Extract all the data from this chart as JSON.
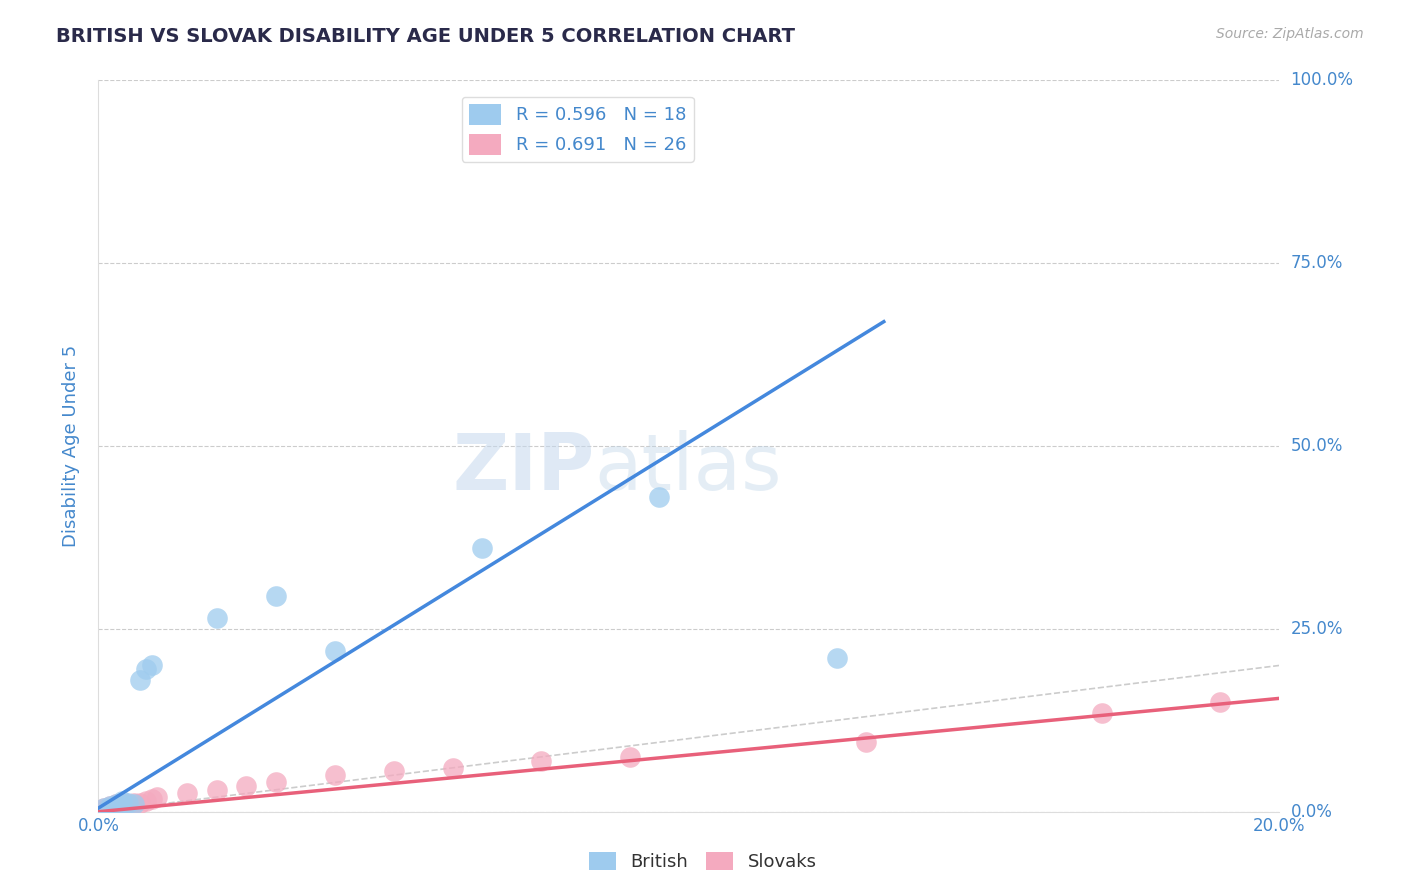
{
  "title": "BRITISH VS SLOVAK DISABILITY AGE UNDER 5 CORRELATION CHART",
  "source": "Source: ZipAtlas.com",
  "ylabel": "Disability Age Under 5",
  "xlim": [
    0.0,
    0.2
  ],
  "ylim": [
    0.0,
    1.0
  ],
  "yticks": [
    0.0,
    0.25,
    0.5,
    0.75,
    1.0
  ],
  "xticks": [
    0.0,
    0.2
  ],
  "british_R": 0.596,
  "british_N": 18,
  "slovak_R": 0.691,
  "slovak_N": 26,
  "british_color": "#9ECBEE",
  "slovak_color": "#F4AABF",
  "british_line_color": "#4488DD",
  "slovak_line_color": "#E8607A",
  "ref_line_color": "#CCCCCC",
  "title_color": "#2A2A4A",
  "axis_label_color": "#4488CC",
  "watermark_zip": "ZIP",
  "watermark_atlas": "atlas",
  "background_color": "#FFFFFF",
  "british_scatter_x": [
    0.001,
    0.002,
    0.002,
    0.003,
    0.003,
    0.004,
    0.004,
    0.005,
    0.006,
    0.007,
    0.008,
    0.009,
    0.02,
    0.03,
    0.04,
    0.065,
    0.095,
    0.125
  ],
  "british_scatter_y": [
    0.005,
    0.005,
    0.008,
    0.008,
    0.01,
    0.01,
    0.015,
    0.012,
    0.01,
    0.18,
    0.195,
    0.2,
    0.265,
    0.295,
    0.22,
    0.36,
    0.43,
    0.21
  ],
  "slovak_scatter_x": [
    0.001,
    0.001,
    0.002,
    0.002,
    0.003,
    0.003,
    0.004,
    0.004,
    0.005,
    0.006,
    0.007,
    0.008,
    0.009,
    0.01,
    0.015,
    0.02,
    0.025,
    0.03,
    0.04,
    0.05,
    0.06,
    0.075,
    0.09,
    0.13,
    0.17,
    0.19
  ],
  "slovak_scatter_y": [
    0.003,
    0.005,
    0.005,
    0.008,
    0.008,
    0.01,
    0.008,
    0.012,
    0.01,
    0.012,
    0.012,
    0.015,
    0.018,
    0.02,
    0.025,
    0.03,
    0.035,
    0.04,
    0.05,
    0.055,
    0.06,
    0.07,
    0.075,
    0.095,
    0.135,
    0.15
  ],
  "british_trend_x": [
    0.0,
    0.133
  ],
  "british_trend_y": [
    0.005,
    0.67
  ],
  "slovak_trend_x": [
    0.0,
    0.2
  ],
  "slovak_trend_y": [
    0.0,
    0.155
  ],
  "ref_line_x": [
    0.0,
    1.0
  ],
  "ref_line_y": [
    0.0,
    1.0
  ]
}
